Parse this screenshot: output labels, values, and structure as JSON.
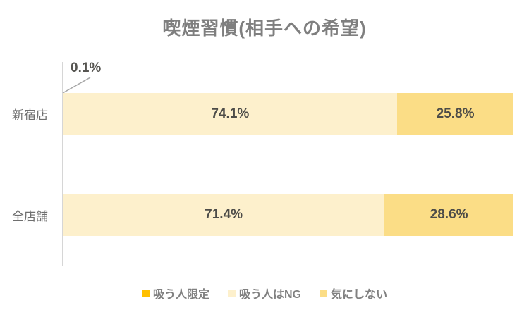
{
  "title": "喫煙習慣(相手への希望)",
  "colors": {
    "smokers_only": "#FFC000",
    "smokers_ng": "#FDF0CC",
    "dont_mind": "#FBDD86",
    "title_text": "#7F7F7F",
    "data_label": "#4D4C48",
    "axis_label": "#6F6F6F",
    "axis_line": "#D6D6D6",
    "leader_line": "#A6A6A6"
  },
  "callout": {
    "label": "0.1%"
  },
  "legend": [
    {
      "key": "smokers_only",
      "label": "吸う人限定"
    },
    {
      "key": "smokers_ng",
      "label": "吸う人はNG"
    },
    {
      "key": "dont_mind",
      "label": "気にしない"
    }
  ],
  "chart_data": {
    "type": "bar",
    "orientation": "horizontal",
    "stacked": true,
    "title": "喫煙習慣(相手への希望)",
    "categories": [
      "新宿店",
      "全店舗"
    ],
    "series": [
      {
        "name": "吸う人限定",
        "key": "smokers_only",
        "values": [
          0.1,
          0
        ],
        "labels": [
          "0.1%",
          ""
        ]
      },
      {
        "name": "吸う人はNG",
        "key": "smokers_ng",
        "values": [
          74.1,
          71.4
        ],
        "labels": [
          "74.1%",
          "71.4%"
        ]
      },
      {
        "name": "気にしない",
        "key": "dont_mind",
        "values": [
          25.8,
          28.6
        ],
        "labels": [
          "25.8%",
          "28.6%"
        ]
      }
    ],
    "xlim": [
      0,
      100
    ],
    "grid": false,
    "legend_position": "bottom",
    "annotations": [
      {
        "text": "0.1%",
        "target_category": "新宿店",
        "target_series": "吸う人限定",
        "style": "leader-line-callout"
      }
    ]
  }
}
